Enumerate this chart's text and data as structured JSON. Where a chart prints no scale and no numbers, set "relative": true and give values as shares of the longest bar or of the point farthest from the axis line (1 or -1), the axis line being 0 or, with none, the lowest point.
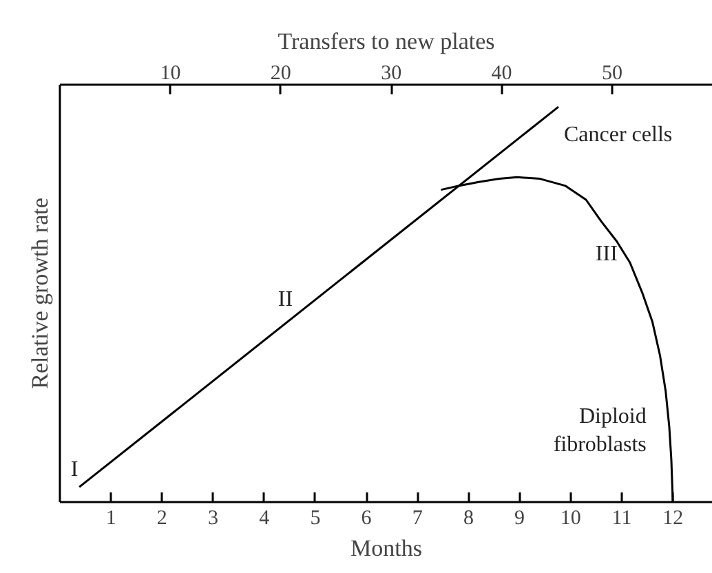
{
  "chart_data": {
    "type": "line",
    "relative": true,
    "xlabel": "Months",
    "ylabel": "Relative growth rate",
    "x2label": "Transfers to new plates",
    "xlim": [
      0,
      12.78
    ],
    "xticks": [
      1,
      2,
      3,
      4,
      5,
      6,
      7,
      8,
      9,
      10,
      11,
      12
    ],
    "x2lim": [
      0,
      59.1
    ],
    "x2ticks": [
      10,
      20,
      30,
      40,
      50
    ],
    "series": [
      {
        "name": "Cancer cells",
        "color": "#000000",
        "x": [
          0.38,
          9.76
        ],
        "values": [
          0.038,
          1
        ]
      },
      {
        "name": "Diploid fibroblasts",
        "color": "#000000",
        "x": [
          7.46,
          7.8,
          8.2,
          8.6,
          8.95,
          9.4,
          9.9,
          10.3,
          10.6,
          10.9,
          11.16,
          11.4,
          11.6,
          11.75,
          11.86,
          11.93,
          11.97,
          12
        ],
        "values": [
          0.79,
          0.8,
          0.81,
          0.818,
          0.822,
          0.818,
          0.8,
          0.765,
          0.71,
          0.66,
          0.606,
          0.53,
          0.456,
          0.37,
          0.28,
          0.19,
          0.108,
          0
        ]
      }
    ],
    "annotations": [
      {
        "text": "I",
        "x": 0.6,
        "y": 0.061
      },
      {
        "text": "II",
        "x": 4.8,
        "y": 0.491
      },
      {
        "text": "III",
        "x": 11.16,
        "y": 0.606
      }
    ],
    "grid": false,
    "legend": false,
    "marker": "none",
    "line_style": "solid"
  }
}
